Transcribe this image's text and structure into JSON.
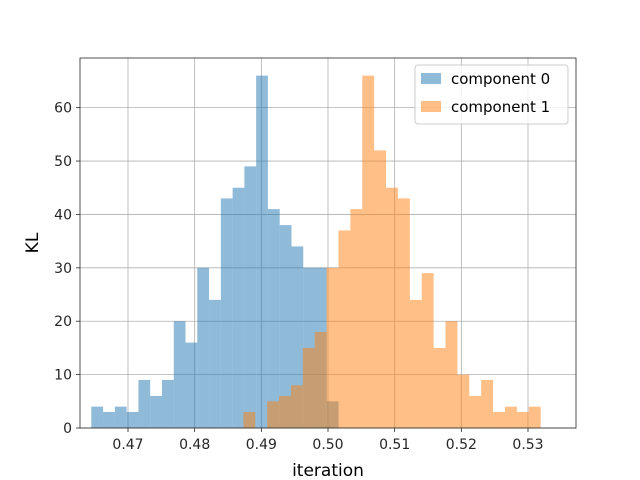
{
  "chart_data": {
    "type": "bar",
    "xlabel": "iteration",
    "ylabel": "KL",
    "xlim": [
      0.4628,
      0.5372
    ],
    "ylim": [
      0,
      69.3
    ],
    "xticks": [
      0.47,
      0.48,
      0.49,
      0.5,
      0.51,
      0.52,
      0.53
    ],
    "xtick_labels": [
      "0.47",
      "0.48",
      "0.49",
      "0.50",
      "0.51",
      "0.52",
      "0.53"
    ],
    "yticks": [
      0,
      10,
      20,
      30,
      40,
      50,
      60
    ],
    "ytick_labels": [
      "0",
      "10",
      "20",
      "30",
      "40",
      "50",
      "60"
    ],
    "grid": true,
    "legend_position": "top-right",
    "bin_width": 0.001766,
    "series": [
      {
        "name": "component 0",
        "color": "#1f77b4",
        "alpha": 0.5,
        "bin_start": 0.4645,
        "counts": [
          4,
          3,
          4,
          3,
          9,
          6,
          9,
          20,
          16,
          30,
          24,
          43,
          45,
          49,
          66,
          41,
          38,
          34,
          30,
          30,
          5
        ]
      },
      {
        "name": "component 1",
        "color": "#ff7f0e",
        "alpha": 0.5,
        "bin_start": 0.4873,
        "bin_width_override": 0.001784,
        "counts": [
          3,
          0,
          5,
          6,
          8,
          15,
          18,
          30,
          37,
          41,
          66,
          52,
          45,
          43,
          24,
          29,
          15,
          20,
          10,
          6,
          9,
          3,
          4,
          3,
          4
        ]
      }
    ]
  }
}
